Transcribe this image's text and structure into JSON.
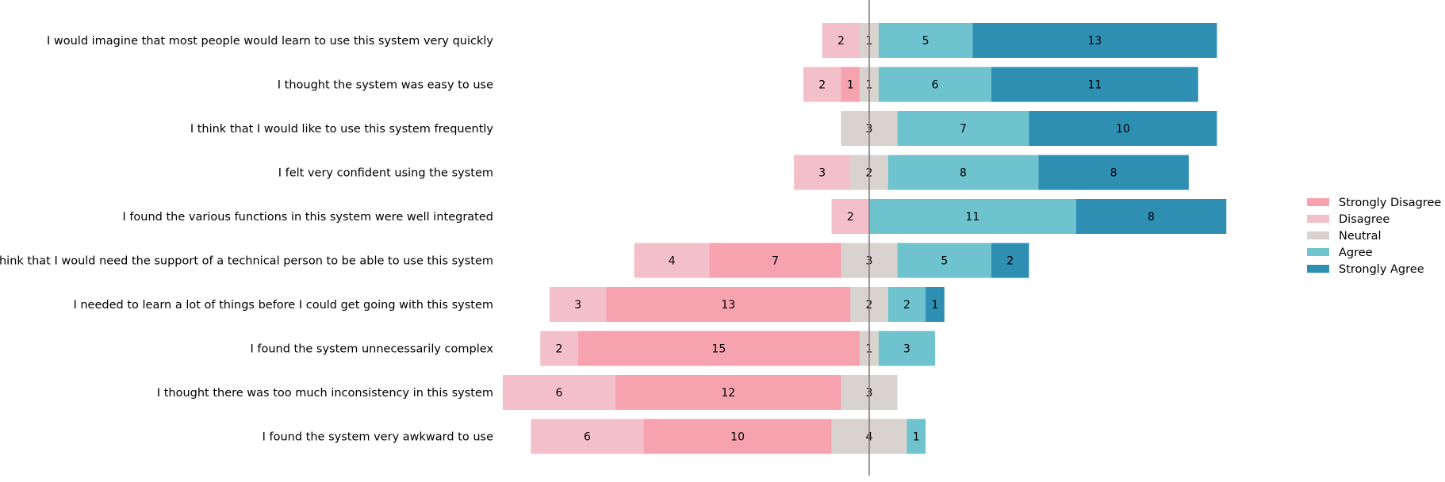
{
  "chart_data": {
    "type": "bar",
    "orientation": "horizontal",
    "stacking": "diverging",
    "title": "",
    "xlabel": "",
    "ylabel": "",
    "grid": false,
    "legend_position": "right",
    "levels": [
      {
        "name": "Strongly Disagree",
        "color": "#f6a2af"
      },
      {
        "name": "Disagree",
        "color": "#f3bfc8"
      },
      {
        "name": "Neutral",
        "color": "#d9d3cf"
      },
      {
        "name": "Agree",
        "color": "#6fc3ce"
      },
      {
        "name": "Strongly Agree",
        "color": "#2e8fb3"
      }
    ],
    "questions": [
      {
        "label": "I would imagine that most people would learn to use this system very quickly",
        "counts": [
          0,
          2,
          1,
          5,
          13
        ]
      },
      {
        "label": "I thought the system was easy to use",
        "counts": [
          1,
          2,
          1,
          6,
          11
        ]
      },
      {
        "label": "I think that I would like to use this system frequently",
        "counts": [
          0,
          0,
          3,
          7,
          10
        ]
      },
      {
        "label": "I felt very confident using the system",
        "counts": [
          0,
          3,
          2,
          8,
          8
        ]
      },
      {
        "label": "I found the various functions in this system were well integrated",
        "counts": [
          0,
          2,
          0,
          11,
          8
        ]
      },
      {
        "label": "I think that I would need the support of a technical person to be able to use this system",
        "counts": [
          7,
          4,
          3,
          5,
          2
        ]
      },
      {
        "label": "I needed to learn a lot of things before I could get going with this system",
        "counts": [
          13,
          3,
          2,
          2,
          1
        ]
      },
      {
        "label": "I found the system unnecessarily complex",
        "counts": [
          15,
          2,
          1,
          3,
          0
        ]
      },
      {
        "label": "I thought there was too much inconsistency in this system",
        "counts": [
          12,
          6,
          3,
          0,
          0
        ]
      },
      {
        "label": "I found the system very awkward to use",
        "counts": [
          10,
          6,
          4,
          1,
          0
        ]
      }
    ]
  }
}
